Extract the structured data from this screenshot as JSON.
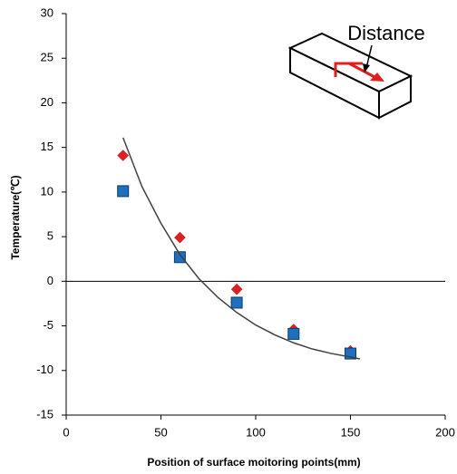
{
  "chart_data": {
    "type": "scatter",
    "x_label": "Position of surface moitoring points(mm)",
    "y_label": "Temperature(℃)",
    "annotation": "Distance",
    "xlim": [
      0,
      200
    ],
    "xticks": [
      0,
      50,
      100,
      150,
      200
    ],
    "ylim": [
      -15,
      30
    ],
    "yticks": [
      -15,
      -10,
      -5,
      0,
      5,
      10,
      15,
      20,
      25,
      30
    ],
    "zero_line": true,
    "series": [
      {
        "marker": "diamond",
        "color": "#e02020",
        "x": [
          30,
          60,
          90,
          120,
          150
        ],
        "values": [
          14.1,
          4.9,
          -0.9,
          -5.4,
          -7.8
        ]
      },
      {
        "marker": "square",
        "color": "#1f6fbf",
        "x": [
          30,
          60,
          90,
          120,
          150
        ],
        "values": [
          10.1,
          2.7,
          -2.4,
          -5.9,
          -8.1
        ]
      },
      {
        "marker": "line",
        "color": "#404040",
        "x": [
          30,
          40,
          50,
          60,
          70,
          80,
          90,
          100,
          110,
          120,
          130,
          140,
          150,
          155
        ],
        "values": [
          16.1,
          10.6,
          6.5,
          3.0,
          0.3,
          -1.8,
          -3.5,
          -4.9,
          -6.0,
          -6.9,
          -7.6,
          -8.1,
          -8.5,
          -8.7
        ]
      }
    ]
  }
}
